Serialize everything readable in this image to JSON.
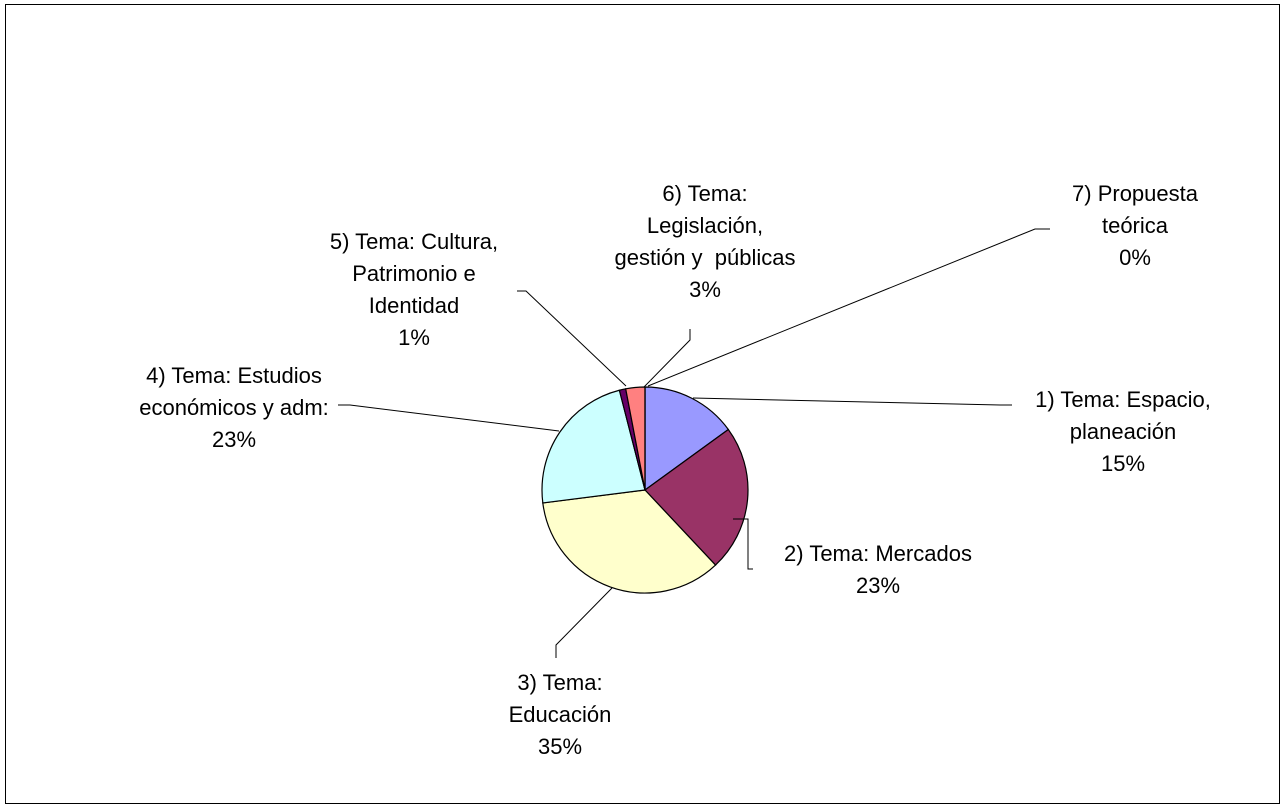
{
  "chart_data": {
    "type": "pie",
    "title": "",
    "start_angle_deg": 0,
    "direction": "clockwise",
    "slices": [
      {
        "name": "1) Tema: Espacio, planeación",
        "label_lines": [
          "1) Tema: Espacio,",
          "planeación"
        ],
        "percent_label": "15%",
        "value": 15,
        "color": "#9999ff"
      },
      {
        "name": "2) Tema: Mercados",
        "label_lines": [
          "2) Tema: Mercados"
        ],
        "percent_label": "23%",
        "value": 23,
        "color": "#993366"
      },
      {
        "name": "3) Tema: Educación",
        "label_lines": [
          "3) Tema:",
          "Educación"
        ],
        "percent_label": "35%",
        "value": 35,
        "color": "#ffffcc"
      },
      {
        "name": "4) Tema: Estudios económicos y adm:",
        "label_lines": [
          "4) Tema: Estudios",
          "económicos y adm:"
        ],
        "percent_label": "23%",
        "value": 23,
        "color": "#ccffff"
      },
      {
        "name": "5) Tema: Cultura, Patrimonio e Identidad",
        "label_lines": [
          "5) Tema: Cultura,",
          "Patrimonio e",
          "Identidad"
        ],
        "percent_label": "1%",
        "value": 1,
        "color": "#660066"
      },
      {
        "name": "6) Tema: Legislación, gestión y públicas",
        "label_lines": [
          "6) Tema:",
          "Legislación,",
          "gestión y  públicas"
        ],
        "percent_label": "3%",
        "value": 3,
        "color": "#ff8080"
      },
      {
        "name": "7) Propuesta teórica",
        "label_lines": [
          "7) Propuesta",
          "teórica"
        ],
        "percent_label": "0%",
        "value": 0,
        "color": "#0066cc"
      }
    ]
  }
}
